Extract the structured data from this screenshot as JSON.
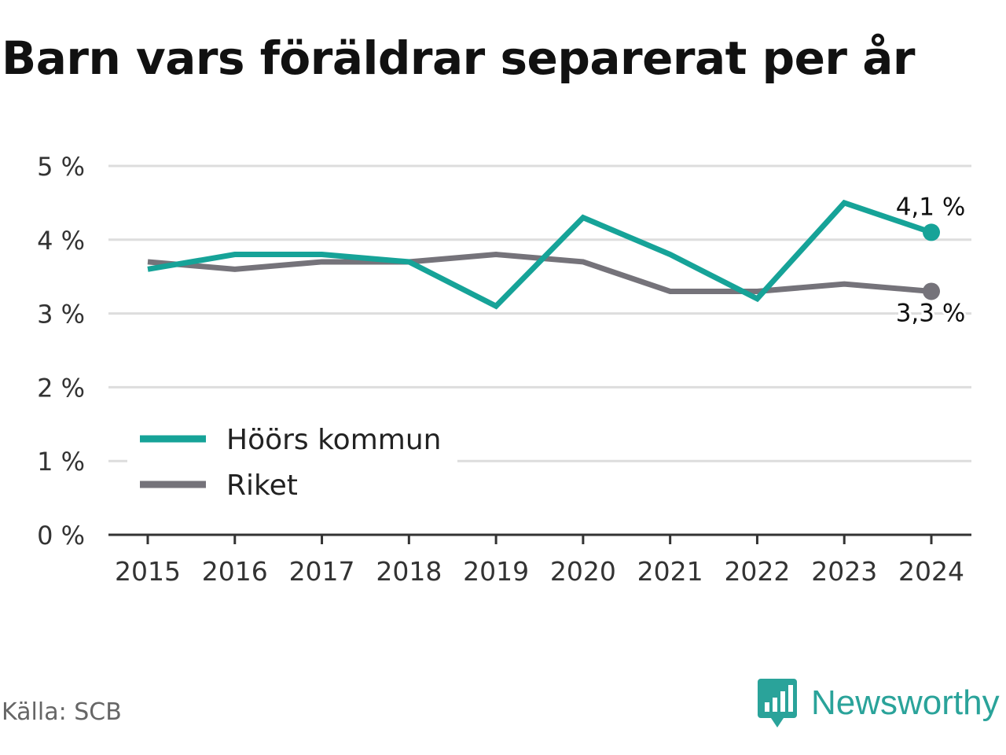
{
  "title": "Barn vars föräldrar separerat per år",
  "source": "Källa: SCB",
  "brand": {
    "name": "Newsworthy",
    "icon": "newsworthy-logo-icon",
    "color": "#2aa39a"
  },
  "chart_data": {
    "type": "line",
    "title": "Barn vars föräldrar separerat per år",
    "x": [
      "2015",
      "2016",
      "2017",
      "2018",
      "2019",
      "2020",
      "2021",
      "2022",
      "2023",
      "2024"
    ],
    "ylim": [
      0,
      5
    ],
    "yticks": [
      "0 %",
      "1 %",
      "2 %",
      "3 %",
      "4 %",
      "5 %"
    ],
    "grid": true,
    "legend_position": "bottom-left",
    "series": [
      {
        "name": "Höörs kommun",
        "color": "#16a398",
        "values": [
          3.6,
          3.8,
          3.8,
          3.7,
          3.1,
          4.3,
          3.8,
          3.2,
          4.5,
          4.1
        ],
        "end_label": "4,1 %"
      },
      {
        "name": "Riket",
        "color": "#75737a",
        "values": [
          3.7,
          3.6,
          3.7,
          3.7,
          3.8,
          3.7,
          3.3,
          3.3,
          3.4,
          3.3
        ],
        "end_label": "3,3 %"
      }
    ]
  }
}
